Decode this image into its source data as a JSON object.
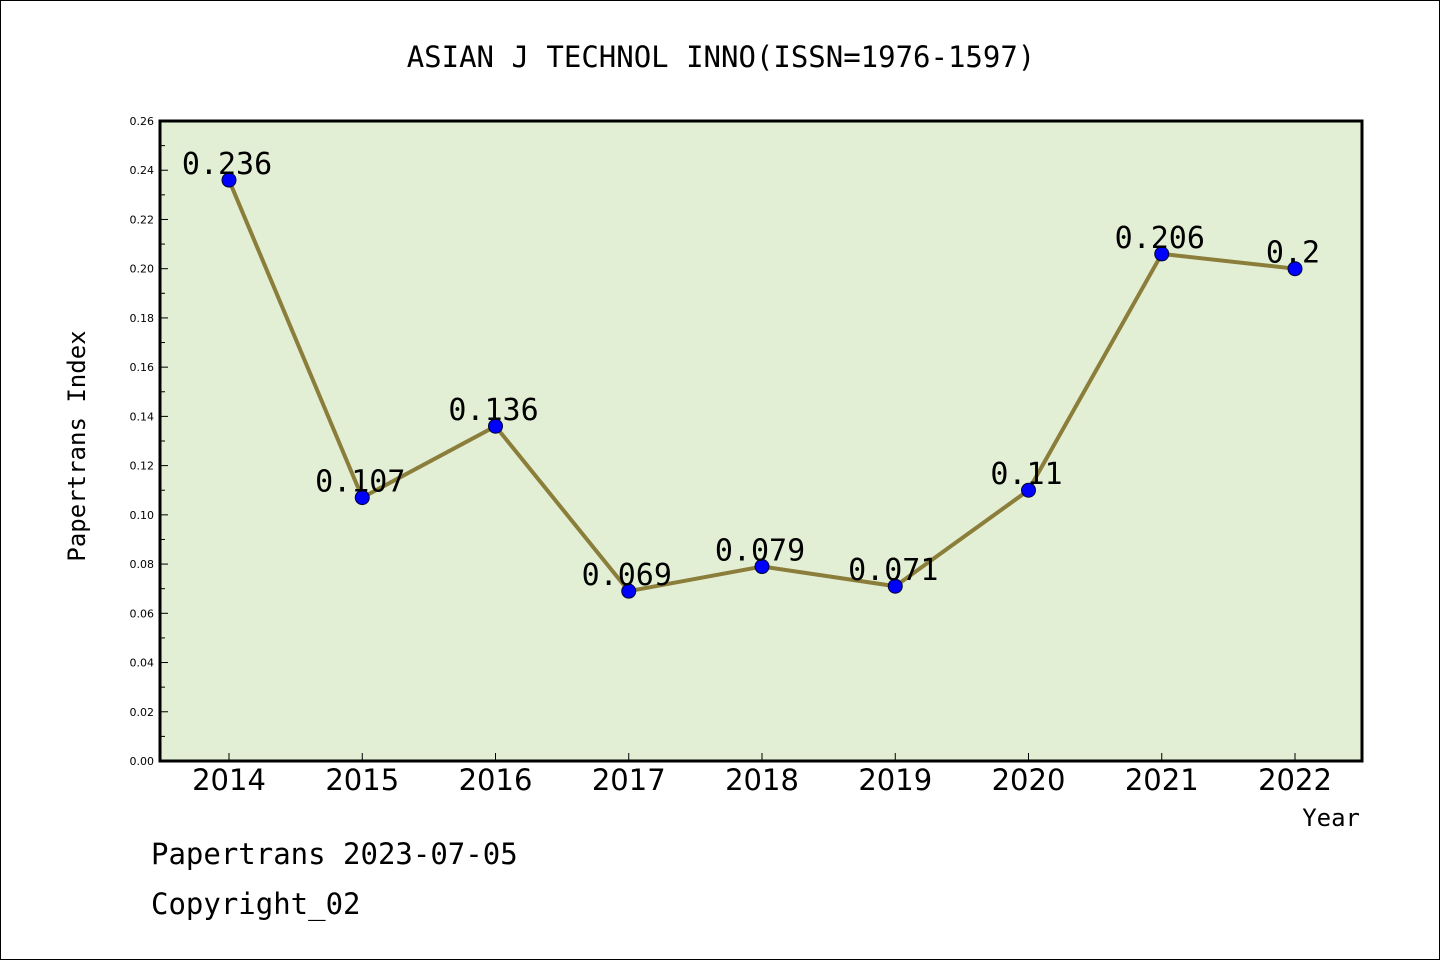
{
  "chart_data": {
    "type": "line",
    "title": "ASIAN J TECHNOL INNO(ISSN=1976-1597)",
    "xlabel": "Year",
    "ylabel": "Papertrans Index",
    "categories": [
      "2014",
      "2015",
      "2016",
      "2017",
      "2018",
      "2019",
      "2020",
      "2021",
      "2022"
    ],
    "series": [
      {
        "values": [
          0.236,
          0.107,
          0.136,
          0.069,
          0.079,
          0.071,
          0.11,
          0.206,
          0.2
        ],
        "data_labels": [
          "0.236",
          "0.107",
          "0.136",
          "0.069",
          "0.079",
          "0.071",
          "0.11",
          "0.206",
          "0.2"
        ]
      }
    ],
    "ylim": [
      0,
      0.26
    ],
    "yticks": [
      "0.00",
      "0.02",
      "0.04",
      "0.06",
      "0.08",
      "0.10",
      "0.12",
      "0.14",
      "0.16",
      "0.18",
      "0.20",
      "0.22",
      "0.24",
      "0.26"
    ],
    "grid": false,
    "legend": "none",
    "colors": {
      "line": "#8b7d3a",
      "marker": "#0000ff",
      "plot_background": "#e2efd5"
    }
  },
  "footer": {
    "date_line": "Papertrans 2023-07-05",
    "copyright_line": "Copyright_02"
  }
}
